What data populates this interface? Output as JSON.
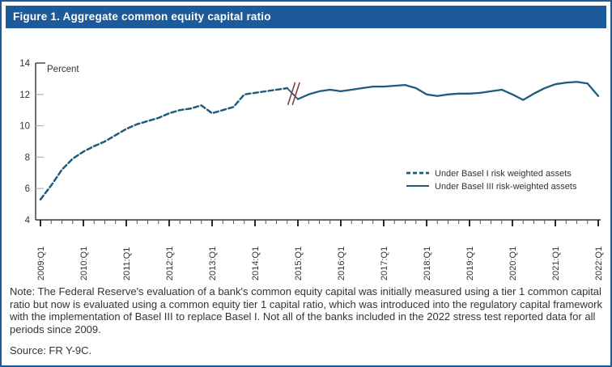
{
  "window": {
    "title": "Figure 1. Aggregate common equity capital ratio"
  },
  "note": "Note: The Federal Reserve's evaluation of a bank's common equity capital was initially measured using a tier 1 common capital ratio but now is evaluated using a common equity tier 1 capital ratio, which was introduced into the regulatory capital framework with the implementation of Basel III to replace Basel I. Not all of the banks included in the 2022 stress test reported data for all periods since 2009.",
  "source": "Source: FR Y-9C.",
  "colors": {
    "titlebar_bg": "#1c5a9a",
    "frame_border": "#1c5a9a",
    "series_line": "#1e5b7d",
    "axis": "#333333",
    "minor_tick": "#555555",
    "gray_tick": "#b0b0b0",
    "break_marks": "#7b4343",
    "text": "#333333"
  },
  "chart_data": {
    "type": "line",
    "title": "Figure 1. Aggregate common equity capital ratio",
    "ylabel": "Percent",
    "ylim": [
      4,
      14
    ],
    "yticks": [
      4,
      6,
      8,
      10,
      12,
      14
    ],
    "grid": false,
    "legend_position": "right-center",
    "x_unit": "quarter",
    "x_range": [
      "2009:Q1",
      "2022:Q1"
    ],
    "xtick_labels": [
      "2009:Q1",
      "2010:Q1",
      "2011:Q1",
      "2012:Q1",
      "2013:Q1",
      "2014:Q1",
      "2015:Q1",
      "2016:Q1",
      "2017:Q1",
      "2018:Q1",
      "2019:Q1",
      "2020:Q1",
      "2021:Q1",
      "2022:Q1"
    ],
    "xtick_label_every_n_quarters": 4,
    "axis_break": {
      "between": [
        "2014:Q4",
        "2015:Q1"
      ],
      "symbol": "//"
    },
    "series": [
      {
        "name": "Under Basel I risk weighted assets",
        "style": "dashed",
        "x_start": "2009:Q1",
        "x_end": "2014:Q4",
        "values": [
          5.3,
          6.2,
          7.2,
          7.9,
          8.35,
          8.7,
          9.0,
          9.4,
          9.8,
          10.1,
          10.3,
          10.5,
          10.8,
          11.0,
          11.1,
          11.3,
          10.8,
          11.0,
          11.2,
          12.0,
          12.1,
          12.2,
          12.3,
          12.4
        ]
      },
      {
        "name": "Under Basel III risk-weighted assets",
        "style": "solid",
        "x_start": "2015:Q1",
        "x_end": "2022:Q1",
        "values": [
          11.7,
          12.0,
          12.2,
          12.3,
          12.2,
          12.3,
          12.4,
          12.5,
          12.5,
          12.55,
          12.6,
          12.4,
          12.0,
          11.9,
          12.0,
          12.05,
          12.05,
          12.1,
          12.2,
          12.3,
          12.0,
          11.65,
          12.05,
          12.4,
          12.65,
          12.75,
          12.8,
          12.7,
          11.9
        ]
      }
    ]
  }
}
